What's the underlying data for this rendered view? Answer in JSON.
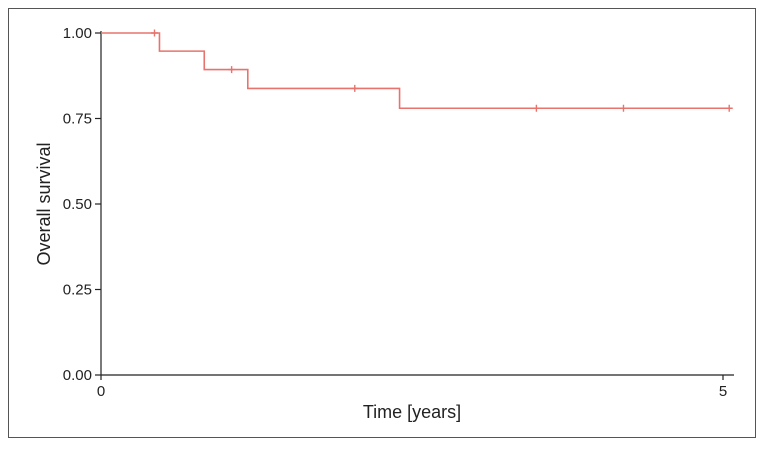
{
  "chart_data": {
    "type": "line",
    "subtype": "kaplan-meier",
    "xlabel": "Time [years]",
    "ylabel": "Overall survival",
    "xlim": [
      0,
      5
    ],
    "ylim": [
      0,
      1
    ],
    "x_ticks": [
      {
        "value": 0,
        "label": "0"
      },
      {
        "value": 5,
        "label": "5"
      }
    ],
    "y_ticks": [
      {
        "value": 0,
        "label": "0.00"
      },
      {
        "value": 0.25,
        "label": "0.25"
      },
      {
        "value": 0.5,
        "label": "0.50"
      },
      {
        "value": 0.75,
        "label": "0.75"
      },
      {
        "value": 1,
        "label": "1.00"
      }
    ],
    "grid": false,
    "series": [
      {
        "color": "#e8736c",
        "steps": [
          {
            "x": 0,
            "y": 1.0
          },
          {
            "x": 0.47,
            "y": 0.947
          },
          {
            "x": 0.83,
            "y": 0.893
          },
          {
            "x": 1.18,
            "y": 0.838
          },
          {
            "x": 2.4,
            "y": 0.78
          }
        ],
        "end_x": 5.05,
        "censored": [
          {
            "x": 0.43,
            "y": 1.0
          },
          {
            "x": 1.05,
            "y": 0.893
          },
          {
            "x": 2.04,
            "y": 0.838
          },
          {
            "x": 3.5,
            "y": 0.78
          },
          {
            "x": 4.2,
            "y": 0.78
          },
          {
            "x": 5.05,
            "y": 0.78
          }
        ]
      }
    ]
  }
}
